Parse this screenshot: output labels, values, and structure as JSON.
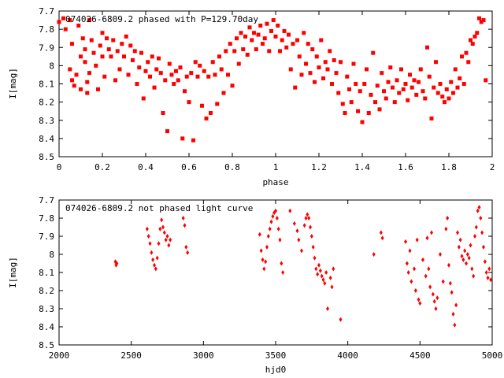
{
  "chart_data": [
    {
      "type": "scatter",
      "title": "074026-6809.2 phased with P=129.70day",
      "xlabel": "phase",
      "ylabel": "I[mag]",
      "xlim": [
        0,
        2
      ],
      "ylim": [
        8.5,
        7.7
      ],
      "y_inverted": true,
      "marker_color": "#ff0000",
      "marker": "filled-square",
      "x_ticks": [
        "0",
        "0.2",
        "0.4",
        "0.6",
        "0.8",
        "1",
        "1.2",
        "1.4",
        "1.6",
        "1.8",
        "2"
      ],
      "y_ticks": [
        "7.7",
        "7.8",
        "7.9",
        "8",
        "8.1",
        "8.2",
        "8.3",
        "8.4",
        "8.5"
      ],
      "points": [
        [
          0.0,
          7.76
        ],
        [
          0.02,
          7.74
        ],
        [
          0.03,
          7.8
        ],
        [
          0.05,
          7.75
        ],
        [
          0.05,
          8.02
        ],
        [
          0.06,
          7.88
        ],
        [
          0.06,
          8.08
        ],
        [
          0.07,
          8.11
        ],
        [
          0.08,
          8.05
        ],
        [
          0.09,
          7.78
        ],
        [
          0.1,
          7.95
        ],
        [
          0.1,
          8.13
        ],
        [
          0.11,
          7.85
        ],
        [
          0.12,
          7.98
        ],
        [
          0.12,
          7.91
        ],
        [
          0.13,
          8.09
        ],
        [
          0.13,
          8.15
        ],
        [
          0.14,
          8.04
        ],
        [
          0.14,
          7.75
        ],
        [
          0.15,
          7.86
        ],
        [
          0.16,
          7.93
        ],
        [
          0.17,
          8.0
        ],
        [
          0.18,
          8.13
        ],
        [
          0.19,
          7.89
        ],
        [
          0.2,
          7.95
        ],
        [
          0.2,
          7.82
        ],
        [
          0.21,
          8.06
        ],
        [
          0.22,
          7.85
        ],
        [
          0.23,
          7.91
        ],
        [
          0.24,
          7.95
        ],
        [
          0.25,
          7.86
        ],
        [
          0.26,
          8.08
        ],
        [
          0.27,
          7.92
        ],
        [
          0.28,
          8.02
        ],
        [
          0.29,
          7.88
        ],
        [
          0.3,
          7.95
        ],
        [
          0.31,
          7.84
        ],
        [
          0.32,
          8.05
        ],
        [
          0.33,
          7.89
        ],
        [
          0.34,
          7.97
        ],
        [
          0.35,
          7.92
        ],
        [
          0.36,
          8.1
        ],
        [
          0.37,
          8.01
        ],
        [
          0.38,
          7.93
        ],
        [
          0.39,
          8.18
        ],
        [
          0.4,
          8.03
        ],
        [
          0.41,
          7.98
        ],
        [
          0.42,
          8.06
        ],
        [
          0.43,
          7.95
        ],
        [
          0.44,
          8.12
        ],
        [
          0.45,
          8.02
        ],
        [
          0.46,
          7.96
        ],
        [
          0.47,
          8.04
        ],
        [
          0.48,
          8.26
        ],
        [
          0.49,
          8.08
        ],
        [
          0.5,
          8.36
        ],
        [
          0.51,
          7.99
        ],
        [
          0.52,
          8.05
        ],
        [
          0.53,
          8.1
        ],
        [
          0.54,
          8.03
        ],
        [
          0.55,
          8.08
        ],
        [
          0.56,
          8.01
        ],
        [
          0.57,
          8.4
        ],
        [
          0.58,
          8.14
        ],
        [
          0.59,
          8.06
        ],
        [
          0.6,
          8.2
        ],
        [
          0.61,
          8.04
        ],
        [
          0.62,
          8.41
        ],
        [
          0.63,
          7.98
        ],
        [
          0.64,
          8.06
        ],
        [
          0.65,
          8.0
        ],
        [
          0.66,
          8.22
        ],
        [
          0.67,
          8.03
        ],
        [
          0.68,
          8.29
        ],
        [
          0.69,
          8.06
        ],
        [
          0.7,
          8.26
        ],
        [
          0.71,
          7.98
        ],
        [
          0.72,
          8.05
        ],
        [
          0.73,
          8.21
        ],
        [
          0.74,
          7.95
        ],
        [
          0.75,
          8.02
        ],
        [
          0.76,
          8.15
        ],
        [
          0.77,
          7.92
        ],
        [
          0.78,
          8.05
        ],
        [
          0.79,
          7.88
        ],
        [
          0.8,
          8.11
        ],
        [
          0.81,
          7.92
        ],
        [
          0.82,
          7.85
        ],
        [
          0.83,
          7.99
        ],
        [
          0.84,
          7.82
        ],
        [
          0.85,
          7.91
        ],
        [
          0.86,
          7.84
        ],
        [
          0.87,
          7.94
        ],
        [
          0.88,
          7.79
        ],
        [
          0.89,
          7.86
        ],
        [
          0.9,
          7.82
        ],
        [
          0.91,
          7.91
        ],
        [
          0.92,
          7.83
        ],
        [
          0.93,
          7.78
        ],
        [
          0.94,
          7.88
        ],
        [
          0.95,
          7.85
        ],
        [
          0.96,
          7.77
        ],
        [
          0.97,
          7.92
        ],
        [
          0.98,
          7.81
        ],
        [
          0.99,
          7.75
        ],
        [
          1.0,
          7.84
        ],
        [
          1.01,
          7.78
        ],
        [
          1.02,
          7.92
        ],
        [
          1.03,
          7.86
        ],
        [
          1.04,
          7.81
        ],
        [
          1.05,
          7.9
        ],
        [
          1.06,
          7.83
        ],
        [
          1.07,
          8.02
        ],
        [
          1.08,
          7.88
        ],
        [
          1.09,
          8.12
        ],
        [
          1.1,
          7.86
        ],
        [
          1.11,
          7.95
        ],
        [
          1.12,
          8.05
        ],
        [
          1.13,
          7.82
        ],
        [
          1.14,
          7.99
        ],
        [
          1.15,
          7.88
        ],
        [
          1.16,
          8.04
        ],
        [
          1.17,
          7.91
        ],
        [
          1.18,
          8.09
        ],
        [
          1.19,
          7.95
        ],
        [
          1.2,
          8.01
        ],
        [
          1.21,
          7.86
        ],
        [
          1.22,
          8.07
        ],
        [
          1.23,
          7.98
        ],
        [
          1.24,
          8.02
        ],
        [
          1.25,
          7.92
        ],
        [
          1.26,
          8.1
        ],
        [
          1.27,
          7.97
        ],
        [
          1.28,
          8.04
        ],
        [
          1.29,
          8.15
        ],
        [
          1.3,
          7.98
        ],
        [
          1.31,
          8.21
        ],
        [
          1.32,
          8.26
        ],
        [
          1.33,
          8.06
        ],
        [
          1.34,
          8.13
        ],
        [
          1.35,
          8.2
        ],
        [
          1.36,
          7.99
        ],
        [
          1.37,
          8.1
        ],
        [
          1.38,
          8.25
        ],
        [
          1.39,
          8.14
        ],
        [
          1.4,
          8.31
        ],
        [
          1.41,
          8.1
        ],
        [
          1.42,
          8.02
        ],
        [
          1.43,
          8.26
        ],
        [
          1.44,
          8.16
        ],
        [
          1.45,
          7.93
        ],
        [
          1.46,
          8.2
        ],
        [
          1.47,
          8.11
        ],
        [
          1.48,
          8.24
        ],
        [
          1.49,
          8.04
        ],
        [
          1.5,
          8.14
        ],
        [
          1.51,
          8.18
        ],
        [
          1.52,
          8.09
        ],
        [
          1.53,
          8.01
        ],
        [
          1.54,
          8.12
        ],
        [
          1.55,
          8.2
        ],
        [
          1.56,
          8.08
        ],
        [
          1.57,
          8.15
        ],
        [
          1.58,
          8.02
        ],
        [
          1.59,
          8.13
        ],
        [
          1.6,
          8.1
        ],
        [
          1.61,
          8.19
        ],
        [
          1.62,
          8.05
        ],
        [
          1.63,
          8.12
        ],
        [
          1.64,
          8.08
        ],
        [
          1.65,
          8.16
        ],
        [
          1.66,
          8.09
        ],
        [
          1.67,
          8.02
        ],
        [
          1.68,
          8.14
        ],
        [
          1.69,
          8.18
        ],
        [
          1.7,
          7.9
        ],
        [
          1.71,
          8.06
        ],
        [
          1.72,
          8.29
        ],
        [
          1.73,
          8.12
        ],
        [
          1.74,
          7.98
        ],
        [
          1.75,
          8.15
        ],
        [
          1.76,
          8.1
        ],
        [
          1.77,
          8.17
        ],
        [
          1.78,
          8.2
        ],
        [
          1.79,
          8.13
        ],
        [
          1.8,
          8.18
        ],
        [
          1.81,
          8.09
        ],
        [
          1.82,
          8.15
        ],
        [
          1.83,
          8.02
        ],
        [
          1.84,
          8.12
        ],
        [
          1.85,
          8.07
        ],
        [
          1.86,
          7.95
        ],
        [
          1.87,
          8.1
        ],
        [
          1.88,
          7.93
        ],
        [
          1.89,
          7.98
        ],
        [
          1.9,
          7.86
        ],
        [
          1.91,
          7.88
        ],
        [
          1.92,
          7.84
        ],
        [
          1.93,
          7.82
        ],
        [
          1.94,
          7.74
        ],
        [
          1.95,
          7.76
        ],
        [
          1.96,
          7.75
        ],
        [
          1.97,
          8.08
        ]
      ]
    },
    {
      "type": "scatter",
      "title": "074026-6809.2 not phased light curve",
      "xlabel": "hjd0",
      "ylabel": "I[mag]",
      "xlim": [
        2000,
        5000
      ],
      "ylim": [
        8.5,
        7.7
      ],
      "y_inverted": true,
      "marker_color": "#ff0000",
      "marker": "filled-diamond",
      "x_ticks": [
        "2000",
        "2500",
        "3000",
        "3500",
        "4000",
        "4500",
        "5000"
      ],
      "y_ticks": [
        "7.7",
        "7.8",
        "7.9",
        "8",
        "8.1",
        "8.2",
        "8.3",
        "8.4",
        "8.5"
      ],
      "points": [
        [
          2390,
          8.04
        ],
        [
          2395,
          8.06
        ],
        [
          2400,
          8.05
        ],
        [
          2610,
          7.86
        ],
        [
          2620,
          7.9
        ],
        [
          2630,
          7.94
        ],
        [
          2640,
          7.99
        ],
        [
          2650,
          8.03
        ],
        [
          2660,
          8.06
        ],
        [
          2670,
          8.08
        ],
        [
          2680,
          8.02
        ],
        [
          2690,
          7.94
        ],
        [
          2700,
          7.86
        ],
        [
          2710,
          7.81
        ],
        [
          2720,
          7.85
        ],
        [
          2730,
          7.88
        ],
        [
          2740,
          7.92
        ],
        [
          2750,
          7.9
        ],
        [
          2760,
          7.95
        ],
        [
          2770,
          7.92
        ],
        [
          2860,
          7.8
        ],
        [
          2870,
          7.84
        ],
        [
          2880,
          7.96
        ],
        [
          2890,
          7.99
        ],
        [
          3390,
          7.89
        ],
        [
          3400,
          7.98
        ],
        [
          3410,
          8.03
        ],
        [
          3420,
          8.08
        ],
        [
          3430,
          8.04
        ],
        [
          3440,
          7.96
        ],
        [
          3450,
          7.9
        ],
        [
          3460,
          7.86
        ],
        [
          3470,
          7.82
        ],
        [
          3480,
          7.79
        ],
        [
          3490,
          7.77
        ],
        [
          3500,
          7.76
        ],
        [
          3510,
          7.8
        ],
        [
          3520,
          7.86
        ],
        [
          3530,
          7.92
        ],
        [
          3540,
          8.05
        ],
        [
          3550,
          8.1
        ],
        [
          3600,
          7.76
        ],
        [
          3630,
          7.83
        ],
        [
          3650,
          7.87
        ],
        [
          3660,
          7.92
        ],
        [
          3680,
          7.98
        ],
        [
          3700,
          7.84
        ],
        [
          3710,
          7.8
        ],
        [
          3720,
          7.78
        ],
        [
          3730,
          7.8
        ],
        [
          3740,
          7.85
        ],
        [
          3750,
          7.9
        ],
        [
          3760,
          7.96
        ],
        [
          3770,
          8.02
        ],
        [
          3780,
          8.08
        ],
        [
          3790,
          8.11
        ],
        [
          3800,
          8.06
        ],
        [
          3810,
          8.09
        ],
        [
          3820,
          8.12
        ],
        [
          3830,
          8.14
        ],
        [
          3840,
          8.16
        ],
        [
          3850,
          8.1
        ],
        [
          3860,
          8.3
        ],
        [
          3880,
          8.13
        ],
        [
          3890,
          8.18
        ],
        [
          3900,
          8.08
        ],
        [
          3950,
          8.36
        ],
        [
          4180,
          8.0
        ],
        [
          4230,
          7.88
        ],
        [
          4240,
          7.91
        ],
        [
          4400,
          7.93
        ],
        [
          4410,
          8.05
        ],
        [
          4420,
          8.1
        ],
        [
          4430,
          7.98
        ],
        [
          4440,
          8.15
        ],
        [
          4460,
          8.08
        ],
        [
          4470,
          8.2
        ],
        [
          4480,
          7.92
        ],
        [
          4490,
          8.25
        ],
        [
          4500,
          8.27
        ],
        [
          4520,
          8.03
        ],
        [
          4540,
          8.12
        ],
        [
          4550,
          7.91
        ],
        [
          4560,
          8.08
        ],
        [
          4570,
          8.18
        ],
        [
          4580,
          7.88
        ],
        [
          4590,
          8.22
        ],
        [
          4600,
          8.26
        ],
        [
          4610,
          8.3
        ],
        [
          4620,
          8.24
        ],
        [
          4640,
          8.0
        ],
        [
          4660,
          8.15
        ],
        [
          4680,
          7.86
        ],
        [
          4690,
          7.8
        ],
        [
          4700,
          8.06
        ],
        [
          4710,
          8.16
        ],
        [
          4720,
          8.21
        ],
        [
          4730,
          8.33
        ],
        [
          4740,
          8.39
        ],
        [
          4750,
          8.28
        ],
        [
          4760,
          7.88
        ],
        [
          4770,
          7.96
        ],
        [
          4780,
          7.92
        ],
        [
          4790,
          8.01
        ],
        [
          4800,
          8.03
        ],
        [
          4810,
          7.98
        ],
        [
          4820,
          8.05
        ],
        [
          4830,
          8.0
        ],
        [
          4840,
          8.02
        ],
        [
          4850,
          7.95
        ],
        [
          4860,
          8.08
        ],
        [
          4870,
          8.12
        ],
        [
          4880,
          7.9
        ],
        [
          4890,
          7.85
        ],
        [
          4900,
          7.76
        ],
        [
          4910,
          7.74
        ],
        [
          4920,
          7.8
        ],
        [
          4930,
          7.88
        ],
        [
          4940,
          7.96
        ],
        [
          4950,
          8.04
        ],
        [
          4960,
          8.1
        ],
        [
          4970,
          8.13
        ],
        [
          4980,
          8.08
        ],
        [
          4990,
          8.14
        ]
      ]
    }
  ]
}
